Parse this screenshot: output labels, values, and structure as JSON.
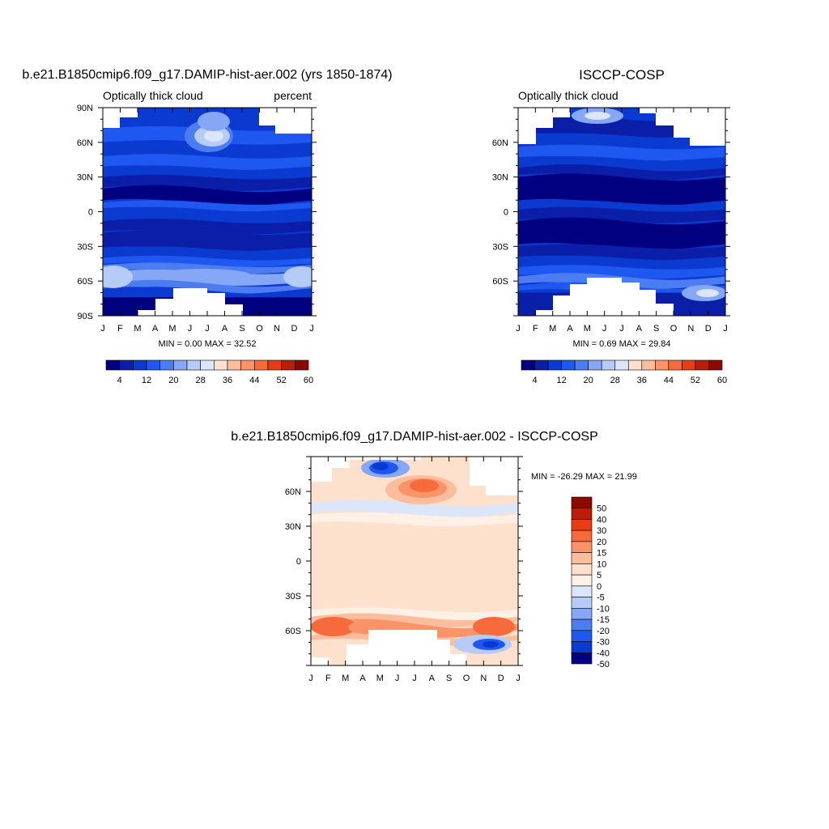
{
  "panels": {
    "model": {
      "title": "b.e21.B1850cmip6.f09_g17.DAMIP-hist-aer.002 (yrs 1850-1874)",
      "left_label": "Optically thick cloud",
      "right_label": "percent",
      "stats": "MIN =   0.00 MAX =  32.52"
    },
    "obs": {
      "title": "ISCCP-COSP",
      "left_label": "Optically thick cloud",
      "stats": "MIN =   0.69 MAX =  29.84"
    },
    "diff": {
      "title": "b.e21.B1850cmip6.f09_g17.DAMIP-hist-aer.002 - ISCCP-COSP",
      "stats": "MIN = -26.29 MAX =  21.99"
    }
  },
  "chart_data": [
    {
      "type": "heatmap",
      "title": "b.e21.B1850cmip6.f09_g17.DAMIP-hist-aer.002 (yrs 1850-1874)",
      "subtitle_left": "Optically thick cloud",
      "units": "percent",
      "x_ticks": [
        "J",
        "F",
        "M",
        "A",
        "M",
        "J",
        "J",
        "A",
        "S",
        "O",
        "N",
        "D",
        "J"
      ],
      "y_ticks": [
        "90S",
        "60S",
        "30S",
        "0",
        "30N",
        "60N",
        "90N"
      ],
      "ylim": [
        -90,
        90
      ],
      "min": 0.0,
      "max": 32.52,
      "colorbar_labels": [
        "4",
        "12",
        "20",
        "28",
        "36",
        "44",
        "52",
        "60"
      ],
      "colormap": [
        "#000080",
        "#0a1ea8",
        "#0a3ad0",
        "#1f58f0",
        "#4b7cf2",
        "#86a7f5",
        "#b7cbf8",
        "#dce6fb",
        "#fee1cc",
        "#fcbd9c",
        "#fa9468",
        "#f76a3c",
        "#e83d14",
        "#b81e08",
        "#8b0a00"
      ]
    },
    {
      "type": "heatmap",
      "title": "ISCCP-COSP",
      "subtitle_left": "Optically thick cloud",
      "x_ticks": [
        "J",
        "F",
        "M",
        "A",
        "M",
        "J",
        "J",
        "A",
        "S",
        "O",
        "N",
        "D",
        "J"
      ],
      "y_ticks": [
        "60S",
        "30S",
        "0",
        "30N",
        "60N"
      ],
      "ylim": [
        -90,
        90
      ],
      "min": 0.69,
      "max": 29.84,
      "colorbar_labels": [
        "4",
        "12",
        "20",
        "28",
        "36",
        "44",
        "52",
        "60"
      ],
      "colormap": [
        "#000080",
        "#0a1ea8",
        "#0a3ad0",
        "#1f58f0",
        "#4b7cf2",
        "#86a7f5",
        "#b7cbf8",
        "#dce6fb",
        "#fee1cc",
        "#fcbd9c",
        "#fa9468",
        "#f76a3c",
        "#e83d14",
        "#b81e08",
        "#8b0a00"
      ]
    },
    {
      "type": "heatmap",
      "title": "b.e21.B1850cmip6.f09_g17.DAMIP-hist-aer.002 - ISCCP-COSP",
      "x_ticks": [
        "J",
        "F",
        "M",
        "A",
        "M",
        "J",
        "J",
        "A",
        "S",
        "O",
        "N",
        "D",
        "J"
      ],
      "y_ticks": [
        "60S",
        "30S",
        "0",
        "30N",
        "60N"
      ],
      "ylim": [
        -90,
        90
      ],
      "min": -26.29,
      "max": 21.99,
      "colorbar_labels": [
        "50",
        "40",
        "30",
        "20",
        "15",
        "10",
        "5",
        "0",
        "-5",
        "-10",
        "-15",
        "-20",
        "-30",
        "-40",
        "-50"
      ],
      "colormap": [
        "#8b0a00",
        "#b81e08",
        "#e83d14",
        "#f76a3c",
        "#fa9468",
        "#fcbd9c",
        "#fee1cc",
        "#fff0e6",
        "#dce6fb",
        "#b7cbf8",
        "#86a7f5",
        "#4b7cf2",
        "#1f58f0",
        "#0a3ad0",
        "#000080"
      ]
    }
  ]
}
